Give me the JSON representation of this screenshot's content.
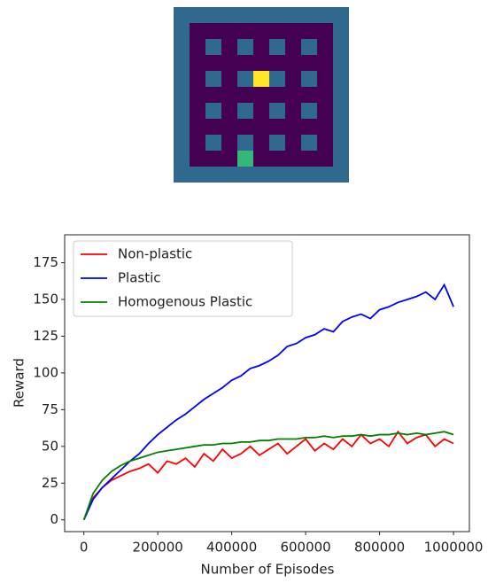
{
  "chart_data": {
    "type": "line",
    "xlabel": "Number of Episodes",
    "ylabel": "Reward",
    "x": [
      0,
      25000,
      50000,
      75000,
      100000,
      125000,
      150000,
      175000,
      200000,
      225000,
      250000,
      275000,
      300000,
      325000,
      350000,
      375000,
      400000,
      425000,
      450000,
      475000,
      500000,
      525000,
      550000,
      575000,
      600000,
      625000,
      650000,
      675000,
      700000,
      725000,
      750000,
      775000,
      800000,
      825000,
      850000,
      875000,
      900000,
      925000,
      950000,
      975000,
      1000000
    ],
    "series": [
      {
        "name": "Non-plastic",
        "color": "#ff0000",
        "values": [
          0,
          15,
          22,
          27,
          30,
          33,
          35,
          38,
          32,
          40,
          38,
          42,
          36,
          45,
          40,
          48,
          42,
          45,
          50,
          44,
          48,
          52,
          45,
          50,
          55,
          47,
          52,
          48,
          55,
          50,
          58,
          52,
          55,
          50,
          60,
          52,
          56,
          58,
          50,
          55,
          52
        ]
      },
      {
        "name": "Plastic",
        "color": "#0000ff",
        "values": [
          0,
          14,
          22,
          28,
          34,
          40,
          45,
          52,
          58,
          63,
          68,
          72,
          77,
          82,
          86,
          90,
          95,
          98,
          103,
          105,
          108,
          112,
          118,
          120,
          124,
          126,
          130,
          128,
          135,
          138,
          140,
          137,
          143,
          145,
          148,
          150,
          152,
          155,
          150,
          160,
          145
        ]
      },
      {
        "name": "Homogenous Plastic",
        "color": "#008000",
        "values": [
          0,
          18,
          27,
          33,
          37,
          40,
          42,
          44,
          46,
          47,
          48,
          49,
          50,
          51,
          51,
          52,
          52,
          53,
          53,
          54,
          54,
          55,
          55,
          55,
          56,
          56,
          57,
          56,
          57,
          57,
          58,
          57,
          58,
          58,
          59,
          58,
          59,
          58,
          59,
          60,
          58
        ]
      }
    ],
    "xlim": [
      -52000,
      1043000
    ],
    "ylim": [
      -8,
      194
    ],
    "xticks": [
      0,
      200000,
      400000,
      600000,
      800000,
      1000000
    ],
    "yticks": [
      0,
      25,
      50,
      75,
      100,
      125,
      150,
      175
    ],
    "legend": "upper left"
  }
}
